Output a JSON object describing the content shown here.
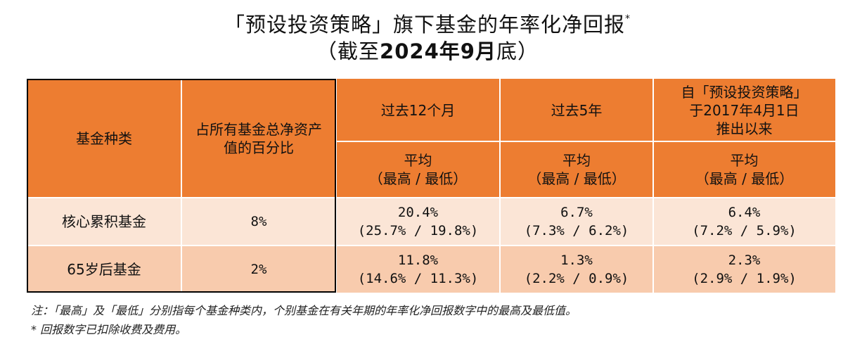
{
  "title": {
    "line1": "「预设投资策略」旗下基金的年率化净回报",
    "line1_mark": "*",
    "line2_prefix": "（截至",
    "line2_bold": "2024年9月",
    "line2_suffix": "底）"
  },
  "table": {
    "headers": {
      "fund_type": "基金种类",
      "share_line1": "占所有基金总净资产",
      "share_line2": "值的百分比",
      "past_12m": "过去12个月",
      "past_5y": "过去5年",
      "since_line1": "自「预设投资策略」",
      "since_line2": "于2017年4月1日",
      "since_line3": "推出以来",
      "avg_label": "平均",
      "range_label": "（最高 / 最低）"
    },
    "rows": [
      {
        "fund": "核心累积基金",
        "share": "8%",
        "m12_avg": "20.4%",
        "m12_range": "(25.7% / 19.8%)",
        "y5_avg": "6.7%",
        "y5_range": "(7.3% / 6.2%)",
        "since_avg": "6.4%",
        "since_range": "(7.2% / 5.9%)"
      },
      {
        "fund": "65岁后基金",
        "share": "2%",
        "m12_avg": "11.8%",
        "m12_range": "(14.6% / 11.3%)",
        "y5_avg": "1.3%",
        "y5_range": "(2.2% / 0.9%)",
        "since_avg": "2.3%",
        "since_range": "(2.9% / 1.9%)"
      }
    ]
  },
  "notes": {
    "note1": "注：「最高」及「最低」分别指每个基金种类内，个别基金在有关年期的年率化净回报数字中的最高及最低值。",
    "note2": "* 回报数字已扣除收费及费用。"
  },
  "colors": {
    "header": "#ED7D31",
    "row1": "#FBE5D6",
    "row2": "#F8CBAD"
  }
}
